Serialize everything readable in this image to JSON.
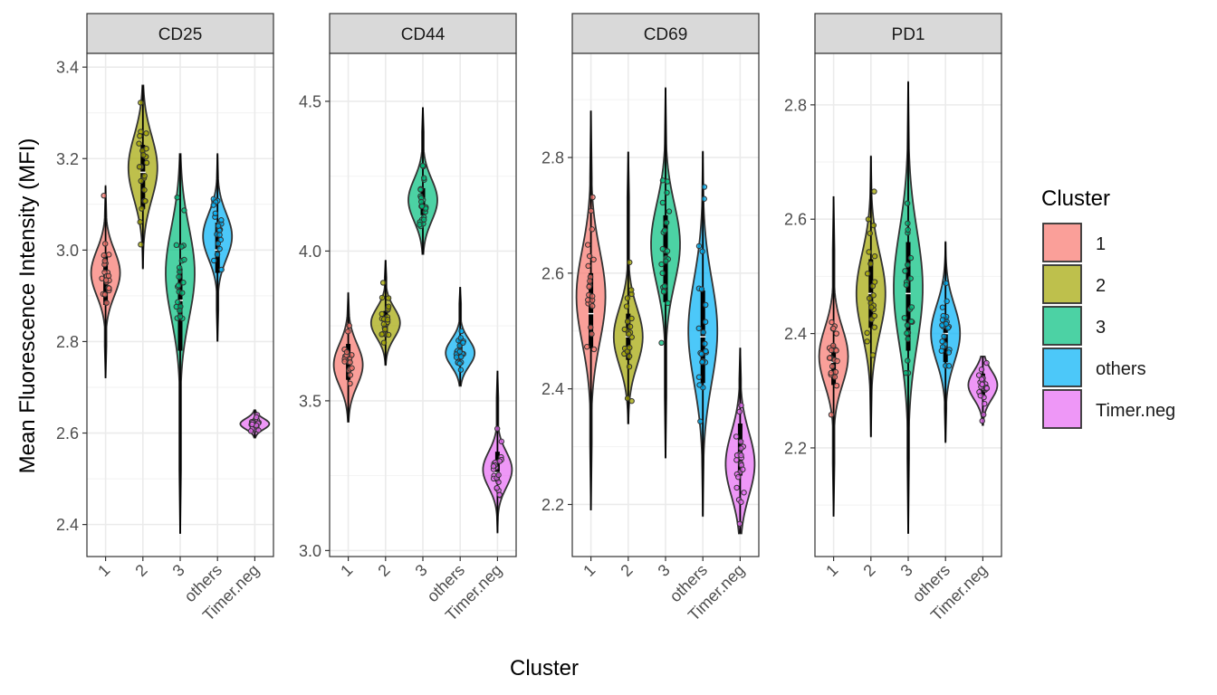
{
  "chart_data": {
    "type": "violin",
    "xlabel": "Cluster",
    "ylabel": "Mean Fluorescence Intensity (MFI)",
    "categories": [
      "1",
      "2",
      "3",
      "others",
      "Timer.neg"
    ],
    "colors": {
      "1": "#F8766D",
      "2": "#A3A500",
      "3": "#00BF7D",
      "others": "#00B0F6",
      "Timer.neg": "#E76BF3"
    },
    "legend": {
      "title": "Cluster",
      "position": "right",
      "items": [
        "1",
        "2",
        "3",
        "others",
        "Timer.neg"
      ]
    },
    "grid": true,
    "panels": [
      {
        "title": "CD25",
        "ylim": [
          2.33,
          3.43
        ],
        "yticks": [
          "2.4",
          "2.6",
          "2.8",
          "3.0",
          "3.2",
          "3.4"
        ],
        "groups": [
          {
            "cluster": "1",
            "min": 2.72,
            "max": 3.14,
            "median": 2.95,
            "q1": 2.88,
            "q3": 2.99,
            "mode": 2.95,
            "spread": 0.05
          },
          {
            "cluster": "2",
            "min": 2.96,
            "max": 3.36,
            "median": 3.17,
            "q1": 3.09,
            "q3": 3.23,
            "mode": 3.18,
            "spread": 0.07
          },
          {
            "cluster": "3",
            "min": 2.38,
            "max": 3.21,
            "median": 2.89,
            "q1": 2.78,
            "q3": 2.96,
            "mode": 2.95,
            "spread": 0.1
          },
          {
            "cluster": "others",
            "min": 2.8,
            "max": 3.21,
            "median": 3.0,
            "q1": 2.95,
            "q3": 3.06,
            "mode": 3.03,
            "spread": 0.05
          },
          {
            "cluster": "Timer.neg",
            "min": 2.59,
            "max": 2.65,
            "median": 2.62,
            "q1": 2.61,
            "q3": 2.63,
            "mode": 2.62,
            "spread": 0.012
          }
        ]
      },
      {
        "title": "CD44",
        "ylim": [
          2.98,
          4.66
        ],
        "yticks": [
          "3.0",
          "3.5",
          "4.0",
          "4.5"
        ],
        "groups": [
          {
            "cluster": "1",
            "min": 3.43,
            "max": 3.86,
            "median": 3.63,
            "q1": 3.57,
            "q3": 3.69,
            "mode": 3.62,
            "spread": 0.07
          },
          {
            "cluster": "2",
            "min": 3.62,
            "max": 3.97,
            "median": 3.76,
            "q1": 3.72,
            "q3": 3.8,
            "mode": 3.76,
            "spread": 0.05
          },
          {
            "cluster": "3",
            "min": 3.99,
            "max": 4.48,
            "median": 4.17,
            "q1": 4.12,
            "q3": 4.21,
            "mode": 4.17,
            "spread": 0.07
          },
          {
            "cluster": "others",
            "min": 3.55,
            "max": 3.88,
            "median": 3.67,
            "q1": 3.64,
            "q3": 3.71,
            "mode": 3.66,
            "spread": 0.045
          },
          {
            "cluster": "Timer.neg",
            "min": 3.06,
            "max": 3.6,
            "median": 3.26,
            "q1": 3.23,
            "q3": 3.33,
            "mode": 3.27,
            "spread": 0.06
          }
        ]
      },
      {
        "title": "CD69",
        "ylim": [
          2.11,
          2.98
        ],
        "yticks": [
          "2.2",
          "2.4",
          "2.6",
          "2.8"
        ],
        "groups": [
          {
            "cluster": "1",
            "min": 2.19,
            "max": 2.88,
            "median": 2.53,
            "q1": 2.47,
            "q3": 2.6,
            "mode": 2.56,
            "spread": 0.08
          },
          {
            "cluster": "2",
            "min": 2.34,
            "max": 2.81,
            "median": 2.49,
            "q1": 2.45,
            "q3": 2.53,
            "mode": 2.49,
            "spread": 0.05
          },
          {
            "cluster": "3",
            "min": 2.28,
            "max": 2.92,
            "median": 2.64,
            "q1": 2.55,
            "q3": 2.7,
            "mode": 2.65,
            "spread": 0.07
          },
          {
            "cluster": "others",
            "min": 2.18,
            "max": 2.81,
            "median": 2.49,
            "q1": 2.41,
            "q3": 2.57,
            "mode": 2.5,
            "spread": 0.09
          },
          {
            "cluster": "Timer.neg",
            "min": 2.15,
            "max": 2.47,
            "median": 2.28,
            "q1": 2.25,
            "q3": 2.34,
            "mode": 2.27,
            "spread": 0.055
          }
        ]
      },
      {
        "title": "PD1",
        "ylim": [
          2.01,
          2.89
        ],
        "yticks": [
          "2.2",
          "2.4",
          "2.6",
          "2.8"
        ],
        "groups": [
          {
            "cluster": "1",
            "min": 2.08,
            "max": 2.64,
            "median": 2.35,
            "q1": 2.31,
            "q3": 2.38,
            "mode": 2.36,
            "spread": 0.05
          },
          {
            "cluster": "2",
            "min": 2.22,
            "max": 2.71,
            "median": 2.47,
            "q1": 2.41,
            "q3": 2.53,
            "mode": 2.47,
            "spread": 0.07
          },
          {
            "cluster": "3",
            "min": 2.05,
            "max": 2.84,
            "median": 2.47,
            "q1": 2.37,
            "q3": 2.56,
            "mode": 2.48,
            "spread": 0.1
          },
          {
            "cluster": "others",
            "min": 2.21,
            "max": 2.56,
            "median": 2.4,
            "q1": 2.35,
            "q3": 2.43,
            "mode": 2.4,
            "spread": 0.05
          },
          {
            "cluster": "Timer.neg",
            "min": 2.24,
            "max": 2.36,
            "median": 2.31,
            "q1": 2.29,
            "q3": 2.33,
            "mode": 2.31,
            "spread": 0.025
          }
        ]
      }
    ]
  }
}
